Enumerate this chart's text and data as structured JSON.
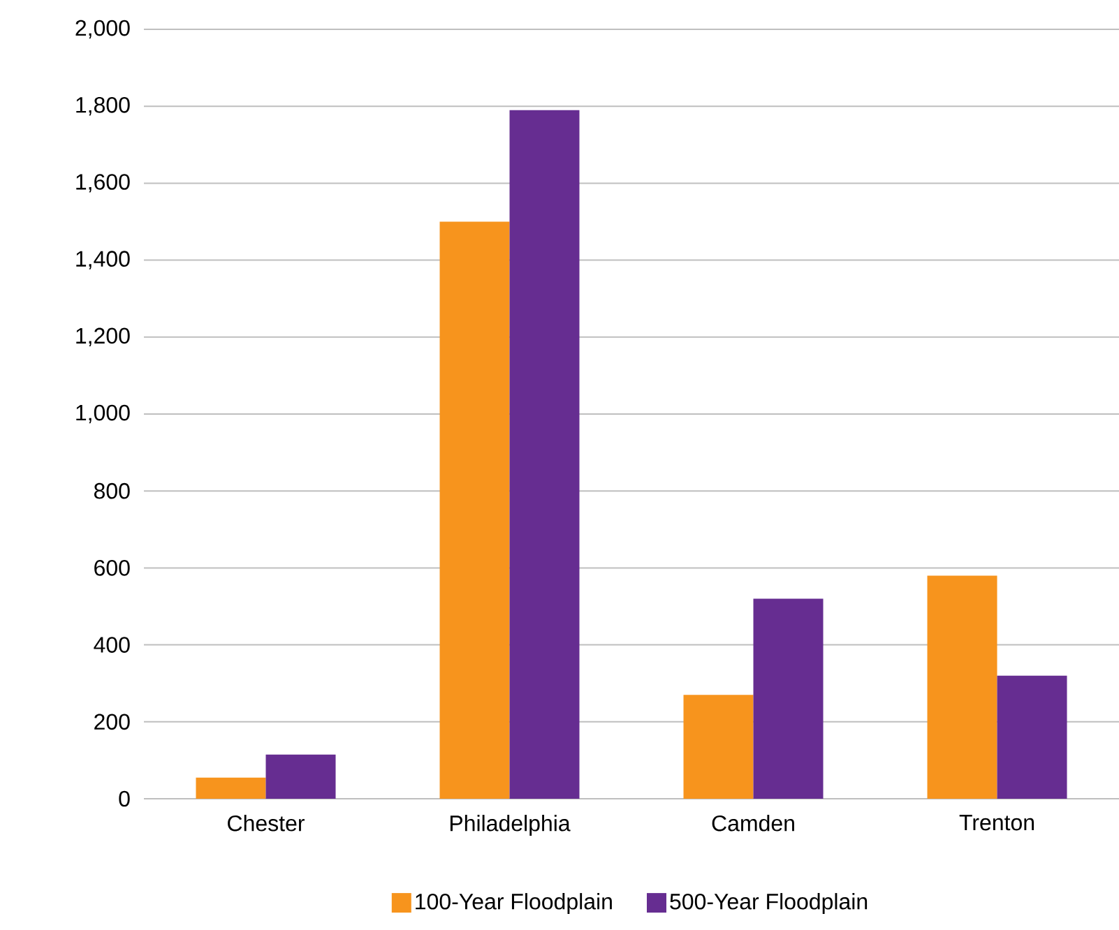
{
  "chart_data": {
    "type": "bar",
    "categories": [
      "Chester",
      "Philadelphia",
      "Camden",
      "Trenton"
    ],
    "series": [
      {
        "name": "100-Year Floodplain",
        "color": "#f7941d",
        "values": [
          55,
          1500,
          270,
          580
        ]
      },
      {
        "name": "500-Year Floodplain",
        "color": "#662d91",
        "values": [
          115,
          1790,
          520,
          320
        ]
      }
    ],
    "ylim": [
      0,
      2000
    ],
    "yticks": [
      0,
      {
        "value": 200,
        "label": "200"
      },
      {
        "value": 400,
        "label": "400"
      },
      {
        "value": 600,
        "label": "600"
      },
      {
        "value": 800,
        "label": "800"
      },
      {
        "value": 1000,
        "label": "1,000"
      },
      {
        "value": 1200,
        "label": "1,200"
      },
      {
        "value": 1400,
        "label": "1,400"
      },
      {
        "value": 1600,
        "label": "1,600"
      },
      {
        "value": 1800,
        "label": "1,800"
      },
      {
        "value": 2000,
        "label": "2,000"
      }
    ],
    "grid": "y",
    "legend": "bottom"
  }
}
